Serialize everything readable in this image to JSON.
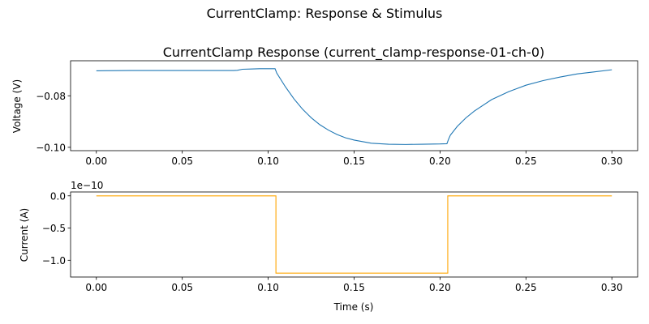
{
  "figure_title": "CurrentClamp: Response & Stimulus",
  "chart_data": [
    {
      "type": "line",
      "title": "CurrentClamp Response (current_clamp-response-01-ch-0)",
      "xlabel": "",
      "ylabel": "Voltage (V)",
      "xlim": [
        -0.015,
        0.315
      ],
      "ylim": [
        -0.1013,
        -0.0664
      ],
      "xticks": [
        0.0,
        0.05,
        0.1,
        0.15,
        0.2,
        0.25,
        0.3
      ],
      "xtick_labels": [
        "0.00",
        "0.05",
        "0.10",
        "0.15",
        "0.20",
        "0.25",
        "0.30"
      ],
      "yticks": [
        -0.08,
        -0.1
      ],
      "ytick_labels": [
        "−0.08",
        "−0.10"
      ],
      "color": "#1f77b4",
      "series": [
        {
          "x": [
            0.0,
            0.02,
            0.04,
            0.06,
            0.08,
            0.082,
            0.085,
            0.09,
            0.095,
            0.1,
            0.104,
            0.105,
            0.11,
            0.115,
            0.12,
            0.125,
            0.13,
            0.135,
            0.14,
            0.145,
            0.15,
            0.16,
            0.17,
            0.18,
            0.19,
            0.2,
            0.204,
            0.205,
            0.206,
            0.21,
            0.215,
            0.22,
            0.23,
            0.24,
            0.25,
            0.26,
            0.27,
            0.28,
            0.29,
            0.3
          ],
          "y": [
            -0.0703,
            -0.0702,
            -0.0702,
            -0.0702,
            -0.0702,
            -0.0701,
            -0.0697,
            -0.0696,
            -0.0695,
            -0.0695,
            -0.0695,
            -0.0712,
            -0.0765,
            -0.0812,
            -0.0852,
            -0.0885,
            -0.0912,
            -0.0933,
            -0.095,
            -0.0963,
            -0.0972,
            -0.0984,
            -0.0988,
            -0.0989,
            -0.0988,
            -0.0987,
            -0.0986,
            -0.0968,
            -0.0953,
            -0.0919,
            -0.0886,
            -0.0859,
            -0.0815,
            -0.0784,
            -0.0759,
            -0.0741,
            -0.0727,
            -0.0715,
            -0.0707,
            -0.0699
          ]
        }
      ]
    },
    {
      "type": "line",
      "title": "",
      "xlabel": "Time (s)",
      "ylabel": "Current (A)",
      "scale_label": "1e−10",
      "xlim": [
        -0.015,
        0.315
      ],
      "ylim": [
        -1.26,
        0.06
      ],
      "xticks": [
        0.0,
        0.05,
        0.1,
        0.15,
        0.2,
        0.25,
        0.3
      ],
      "xtick_labels": [
        "0.00",
        "0.05",
        "0.10",
        "0.15",
        "0.20",
        "0.25",
        "0.30"
      ],
      "yticks": [
        0.0,
        -0.5,
        -1.0
      ],
      "ytick_labels": [
        "0.0",
        "−0.5",
        "−1.0"
      ],
      "color": "#ffa500",
      "series": [
        {
          "x": [
            0.0,
            0.1045,
            0.1045,
            0.2045,
            0.2045,
            0.3
          ],
          "y": [
            0.0,
            0.0,
            -1.2,
            -1.2,
            0.0,
            0.0
          ]
        }
      ]
    }
  ]
}
